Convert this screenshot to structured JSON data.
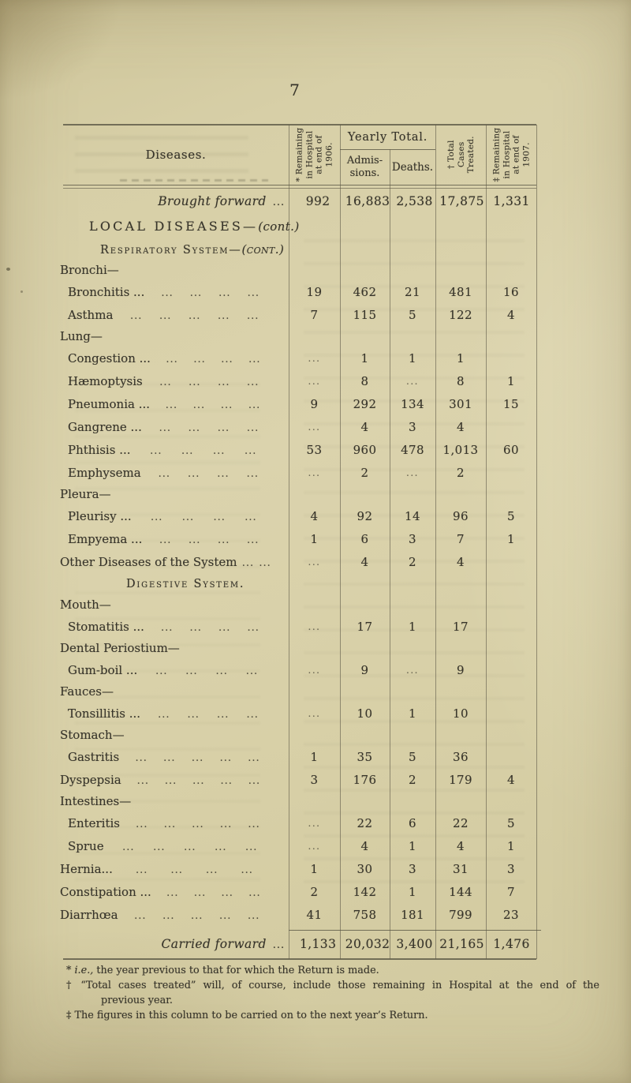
{
  "page": {
    "number": "7"
  },
  "table": {
    "header": {
      "diseases": "Diseases.",
      "remaining_1906": "* Remaining\nin Hospital\nat end of\n1906.",
      "yearly_total": "Yearly Total.",
      "admissions": "Admis-\nsions.",
      "deaths": "Deaths.",
      "total_treated": "† Total\nCases\nTreated.",
      "remaining_1907": "‡ Remaining\nin Hospital\nat end of\n1907."
    },
    "rows": [
      {
        "type": "total",
        "label": "Brought forward",
        "dots": "...",
        "cells": [
          "992",
          "16,883",
          "2,538",
          "17,875",
          "1,331"
        ]
      },
      {
        "type": "section-major",
        "text": "LOCAL DISEASES—",
        "cont": "(cont.)"
      },
      {
        "type": "section-minor",
        "text": "Respiratory System—",
        "cont": "(cont.)"
      },
      {
        "type": "group",
        "label": "Bronchi—"
      },
      {
        "type": "disease",
        "label": "Bronchitis ...",
        "indent": 1,
        "leaders": 4,
        "cells": [
          "19",
          "462",
          "21",
          "481",
          "16"
        ]
      },
      {
        "type": "disease",
        "label": "Asthma",
        "indent": 1,
        "leaders": 5,
        "cells": [
          "7",
          "115",
          "5",
          "122",
          "4"
        ]
      },
      {
        "type": "group",
        "label": "Lung—"
      },
      {
        "type": "disease",
        "label": "Congestion ...",
        "indent": 1,
        "leaders": 4,
        "cells": [
          "...",
          "1",
          "1",
          "1",
          ""
        ]
      },
      {
        "type": "disease",
        "label": "Hæmoptysis",
        "indent": 1,
        "leaders": 4,
        "cells": [
          "...",
          "8",
          "...",
          "8",
          "1"
        ]
      },
      {
        "type": "disease",
        "label": "Pneumonia ...",
        "indent": 1,
        "leaders": 4,
        "cells": [
          "9",
          "292",
          "134",
          "301",
          "15"
        ]
      },
      {
        "type": "disease",
        "label": "Gangrene ...",
        "indent": 1,
        "leaders": 4,
        "cells": [
          "...",
          "4",
          "3",
          "4",
          ""
        ]
      },
      {
        "type": "disease",
        "label": "Phthisis ...",
        "indent": 1,
        "leaders": 4,
        "cells": [
          "53",
          "960",
          "478",
          "1,013",
          "60"
        ]
      },
      {
        "type": "disease",
        "label": "Emphysema",
        "indent": 1,
        "leaders": 4,
        "cells": [
          "...",
          "2",
          "...",
          "2",
          ""
        ]
      },
      {
        "type": "group",
        "label": "Pleura—"
      },
      {
        "type": "disease",
        "label": "Pleurisy ...",
        "indent": 1,
        "leaders": 4,
        "cells": [
          "4",
          "92",
          "14",
          "96",
          "5"
        ]
      },
      {
        "type": "disease",
        "label": "Empyema ...",
        "indent": 1,
        "leaders": 4,
        "cells": [
          "1",
          "6",
          "3",
          "7",
          "1"
        ]
      },
      {
        "type": "disease",
        "label": "Other Diseases of the System",
        "indent": 0,
        "leaders": 2,
        "cells": [
          "...",
          "4",
          "2",
          "4",
          ""
        ]
      },
      {
        "type": "section-minor",
        "text": "Digestive System.",
        "cont": ""
      },
      {
        "type": "group",
        "label": "Mouth—"
      },
      {
        "type": "disease",
        "label": "Stomatitis ...",
        "indent": 1,
        "leaders": 4,
        "cells": [
          "...",
          "17",
          "1",
          "17",
          ""
        ]
      },
      {
        "type": "group",
        "label": "Dental Periostium—"
      },
      {
        "type": "disease",
        "label": "Gum-boil ...",
        "indent": 1,
        "leaders": 4,
        "cells": [
          "...",
          "9",
          "...",
          "9",
          ""
        ]
      },
      {
        "type": "group",
        "label": "Fauces—"
      },
      {
        "type": "disease",
        "label": "Tonsillitis ...",
        "indent": 1,
        "leaders": 4,
        "cells": [
          "...",
          "10",
          "1",
          "10",
          ""
        ]
      },
      {
        "type": "group",
        "label": "Stomach—"
      },
      {
        "type": "disease",
        "label": "Gastritis",
        "indent": 1,
        "leaders": 5,
        "cells": [
          "1",
          "35",
          "5",
          "36",
          ""
        ]
      },
      {
        "type": "disease",
        "label": "Dyspepsia",
        "indent": 0,
        "leaders": 5,
        "cells": [
          "3",
          "176",
          "2",
          "179",
          "4"
        ]
      },
      {
        "type": "group",
        "label": "Intestines—"
      },
      {
        "type": "disease",
        "label": "Enteritis",
        "indent": 1,
        "leaders": 5,
        "cells": [
          "...",
          "22",
          "6",
          "22",
          "5"
        ]
      },
      {
        "type": "disease",
        "label": "Sprue",
        "indent": 1,
        "leaders": 5,
        "cells": [
          "...",
          "4",
          "1",
          "4",
          "1"
        ]
      },
      {
        "type": "disease",
        "label": "Hernia...",
        "indent": 0,
        "leaders": 4,
        "cells": [
          "1",
          "30",
          "3",
          "31",
          "3"
        ]
      },
      {
        "type": "disease",
        "label": "Constipation ...",
        "indent": 0,
        "leaders": 4,
        "cells": [
          "2",
          "142",
          "1",
          "144",
          "7"
        ]
      },
      {
        "type": "disease",
        "label": "Diarrhœa",
        "indent": 0,
        "leaders": 5,
        "cells": [
          "41",
          "758",
          "181",
          "799",
          "23"
        ]
      },
      {
        "type": "spacer"
      },
      {
        "type": "carried",
        "label": "Carried forward",
        "dots": "...",
        "cells": [
          "1,133",
          "20,032",
          "3,400",
          "21,165",
          "1,476"
        ]
      }
    ]
  },
  "footnotes": [
    {
      "parts": [
        {
          "t": "* "
        },
        {
          "t": "i.e.,",
          "i": true
        },
        {
          "t": " the year previous to that for which the Return is made."
        }
      ]
    },
    {
      "parts": [
        {
          "t": "† “Total cases treated” will, of course, include those remaining in Hospital at the end of the"
        }
      ],
      "justify": true
    },
    {
      "parts": [
        {
          "t": "previous year."
        }
      ],
      "indent": 1
    },
    {
      "parts": [
        {
          "t": "‡ The figures in this column to be carried on to the next year’s Return."
        }
      ]
    }
  ]
}
